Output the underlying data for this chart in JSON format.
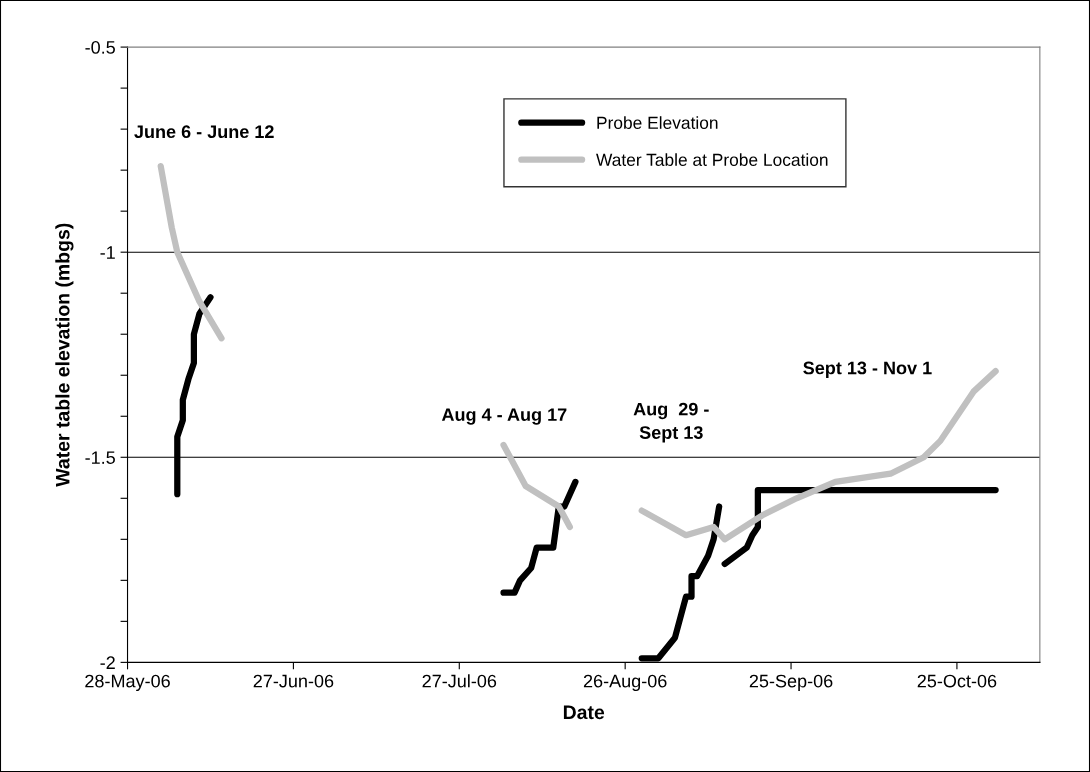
{
  "chart_data": {
    "type": "line",
    "xlabel": "Date",
    "ylabel": "Water table elevation (mbgs)",
    "series": [
      {
        "name": "Probe Elevation",
        "color": "#000000",
        "x": [
          "2006-06-06",
          "2006-06-06",
          "2006-06-07",
          "2006-06-07",
          "2006-06-08",
          "2006-06-09",
          "2006-06-09",
          "2006-06-10",
          "2006-06-12"
        ],
        "values": [
          -1.59,
          -1.45,
          -1.41,
          -1.36,
          -1.31,
          -1.27,
          -1.2,
          -1.15,
          -1.11
        ]
      },
      {
        "color": "#000000",
        "x": [
          "2006-08-04",
          "2006-08-06",
          "2006-08-07",
          "2006-08-09",
          "2006-08-10",
          "2006-08-13",
          "2006-08-14",
          "2006-08-15",
          "2006-08-17"
        ],
        "values": [
          -1.83,
          -1.83,
          -1.8,
          -1.77,
          -1.72,
          -1.72,
          -1.62,
          -1.62,
          -1.56
        ]
      },
      {
        "color": "#000000",
        "x": [
          "2006-08-29",
          "2006-09-01",
          "2006-09-04",
          "2006-09-06",
          "2006-09-07",
          "2006-09-07",
          "2006-09-08",
          "2006-09-10",
          "2006-09-11",
          "2006-09-12"
        ],
        "values": [
          -1.99,
          -1.99,
          -1.94,
          -1.84,
          -1.84,
          -1.79,
          -1.79,
          -1.74,
          -1.7,
          -1.62
        ]
      },
      {
        "color": "#000000",
        "x": [
          "2006-09-13",
          "2006-09-15",
          "2006-09-17",
          "2006-09-18",
          "2006-09-19",
          "2006-09-19",
          "2006-11-01"
        ],
        "values": [
          -1.76,
          -1.74,
          -1.72,
          -1.69,
          -1.67,
          -1.58,
          -1.58
        ]
      },
      {
        "name": "Water Table at Probe Location",
        "color": "#c0c0c0",
        "x": [
          "2006-06-03",
          "2006-06-05",
          "2006-06-06",
          "2006-06-10",
          "2006-06-14"
        ],
        "values": [
          -0.79,
          -0.94,
          -1.0,
          -1.12,
          -1.21
        ]
      },
      {
        "color": "#c0c0c0",
        "x": [
          "2006-08-04",
          "2006-08-08",
          "2006-08-14",
          "2006-08-16"
        ],
        "values": [
          -1.47,
          -1.57,
          -1.62,
          -1.67
        ]
      },
      {
        "color": "#c0c0c0",
        "x": [
          "2006-08-29",
          "2006-09-06",
          "2006-09-11",
          "2006-09-13",
          "2006-09-20",
          "2006-09-26",
          "2006-10-03",
          "2006-10-13",
          "2006-10-19",
          "2006-10-22",
          "2006-10-28",
          "2006-11-01"
        ],
        "values": [
          -1.63,
          -1.69,
          -1.67,
          -1.7,
          -1.64,
          -1.6,
          -1.56,
          -1.54,
          -1.5,
          -1.46,
          -1.34,
          -1.29
        ]
      }
    ],
    "xlim": [
      "2006-05-28",
      "2006-11-09"
    ],
    "xticks": [
      {
        "value": "2006-05-28",
        "label": "28-May-06"
      },
      {
        "value": "2006-06-27",
        "label": "27-Jun-06"
      },
      {
        "value": "2006-07-27",
        "label": "27-Jul-06"
      },
      {
        "value": "2006-08-26",
        "label": "26-Aug-06"
      },
      {
        "value": "2006-09-25",
        "label": "25-Sep-06"
      },
      {
        "value": "2006-10-25",
        "label": "25-Oct-06"
      }
    ],
    "ylim": [
      -2,
      -0.5
    ],
    "yticks": [
      -2,
      {
        "value": -1.9,
        "label": null
      },
      {
        "value": -1.8,
        "label": null
      },
      {
        "value": -1.7,
        "label": null
      },
      {
        "value": -1.6,
        "label": null
      },
      -1.5,
      {
        "value": -1.4,
        "label": null
      },
      {
        "value": -1.3,
        "label": null
      },
      {
        "value": -1.2,
        "label": null
      },
      {
        "value": -1.1,
        "label": null
      },
      -1,
      {
        "value": -0.9,
        "label": null
      },
      {
        "value": -0.8,
        "label": null
      },
      {
        "value": -0.7,
        "label": null
      },
      {
        "value": -0.6,
        "label": null
      },
      -0.5
    ],
    "grid": "y",
    "legend": "top",
    "marker": "none",
    "line_style": "solid",
    "annotations": [
      "June 6 - June 12",
      "Aug 4 - Aug 17",
      "Aug  29 -\nSept 13",
      "Sept 13 - Nov 1"
    ]
  }
}
